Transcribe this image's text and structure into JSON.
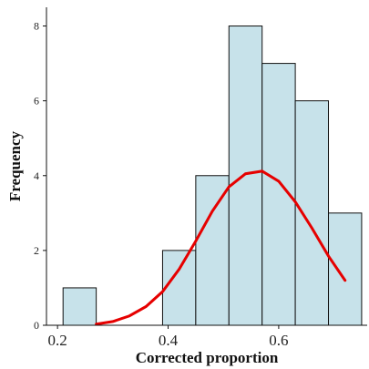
{
  "chart_data": {
    "type": "bar",
    "subtype": "histogram",
    "title": "",
    "xlabel": "Corrected proportion",
    "ylabel": "Frequency",
    "xlim": [
      0.18,
      0.76
    ],
    "ylim": [
      0,
      8.5
    ],
    "xticks": [
      0.2,
      0.4,
      0.6
    ],
    "xtick_labels": [
      "0.2",
      "0.4",
      "0.6"
    ],
    "yticks": [
      0,
      2,
      4,
      6,
      8
    ],
    "ytick_labels": [
      "0",
      "2",
      "4",
      "6",
      "8"
    ],
    "bins": [
      {
        "x0": 0.21,
        "x1": 0.27,
        "count": 1
      },
      {
        "x0": 0.27,
        "x1": 0.33,
        "count": 0
      },
      {
        "x0": 0.33,
        "x1": 0.39,
        "count": 0
      },
      {
        "x0": 0.39,
        "x1": 0.45,
        "count": 2
      },
      {
        "x0": 0.45,
        "x1": 0.51,
        "count": 4
      },
      {
        "x0": 0.51,
        "x1": 0.57,
        "count": 8
      },
      {
        "x0": 0.57,
        "x1": 0.63,
        "count": 7
      },
      {
        "x0": 0.63,
        "x1": 0.69,
        "count": 6
      },
      {
        "x0": 0.69,
        "x1": 0.75,
        "count": 3
      }
    ],
    "density_curve": {
      "x": [
        0.27,
        0.3,
        0.33,
        0.36,
        0.39,
        0.42,
        0.45,
        0.48,
        0.51,
        0.54,
        0.57,
        0.6,
        0.63,
        0.66,
        0.69,
        0.72
      ],
      "y": [
        0.03,
        0.1,
        0.25,
        0.5,
        0.9,
        1.5,
        2.25,
        3.05,
        3.7,
        4.05,
        4.12,
        3.85,
        3.3,
        2.6,
        1.85,
        1.2
      ]
    },
    "grid": false,
    "legend": "none",
    "colors": {
      "bar_fill": "#c7e2ea",
      "bar_stroke": "#111111",
      "curve": "#e60000",
      "axis": "#111111"
    }
  }
}
